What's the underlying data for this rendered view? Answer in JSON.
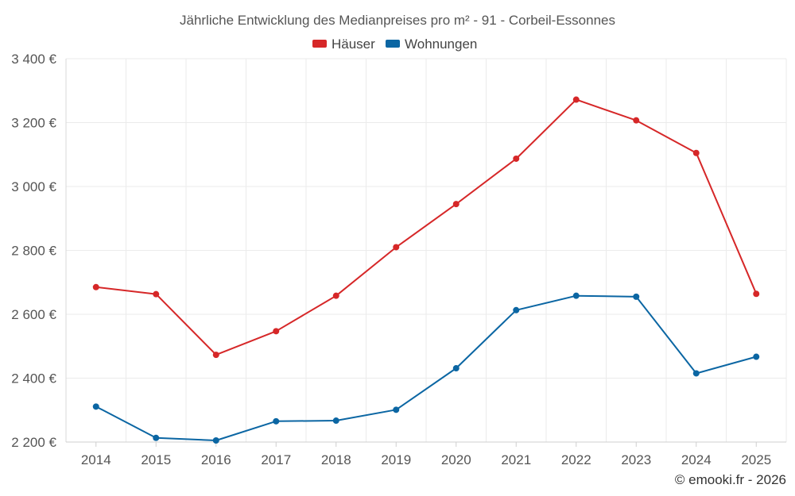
{
  "chart_data": {
    "type": "line",
    "title": "Jährliche Entwicklung des Medianpreises pro m² - 91 - Corbeil-Essonnes",
    "xlabel": "",
    "ylabel": "",
    "categories": [
      "2014",
      "2015",
      "2016",
      "2017",
      "2018",
      "2019",
      "2020",
      "2021",
      "2022",
      "2023",
      "2024",
      "2025"
    ],
    "ylim": [
      2200,
      3400
    ],
    "yticks": [
      2200,
      2400,
      2600,
      2800,
      3000,
      3200,
      3400
    ],
    "ytick_labels": [
      "2 200 €",
      "2 400 €",
      "2 600 €",
      "2 800 €",
      "3 000 €",
      "3 200 €",
      "3 400 €"
    ],
    "grid": true,
    "legend_position": "top-center",
    "series": [
      {
        "name": "Häuser",
        "color": "#d62728",
        "values": [
          2685,
          2663,
          2473,
          2547,
          2658,
          2810,
          2945,
          3087,
          3272,
          3207,
          3105,
          2664
        ]
      },
      {
        "name": "Wohnungen",
        "color": "#0b66a3",
        "values": [
          2311,
          2213,
          2205,
          2265,
          2267,
          2301,
          2431,
          2613,
          2658,
          2655,
          2415,
          2467
        ]
      }
    ]
  },
  "credit": "© emooki.fr - 2026"
}
